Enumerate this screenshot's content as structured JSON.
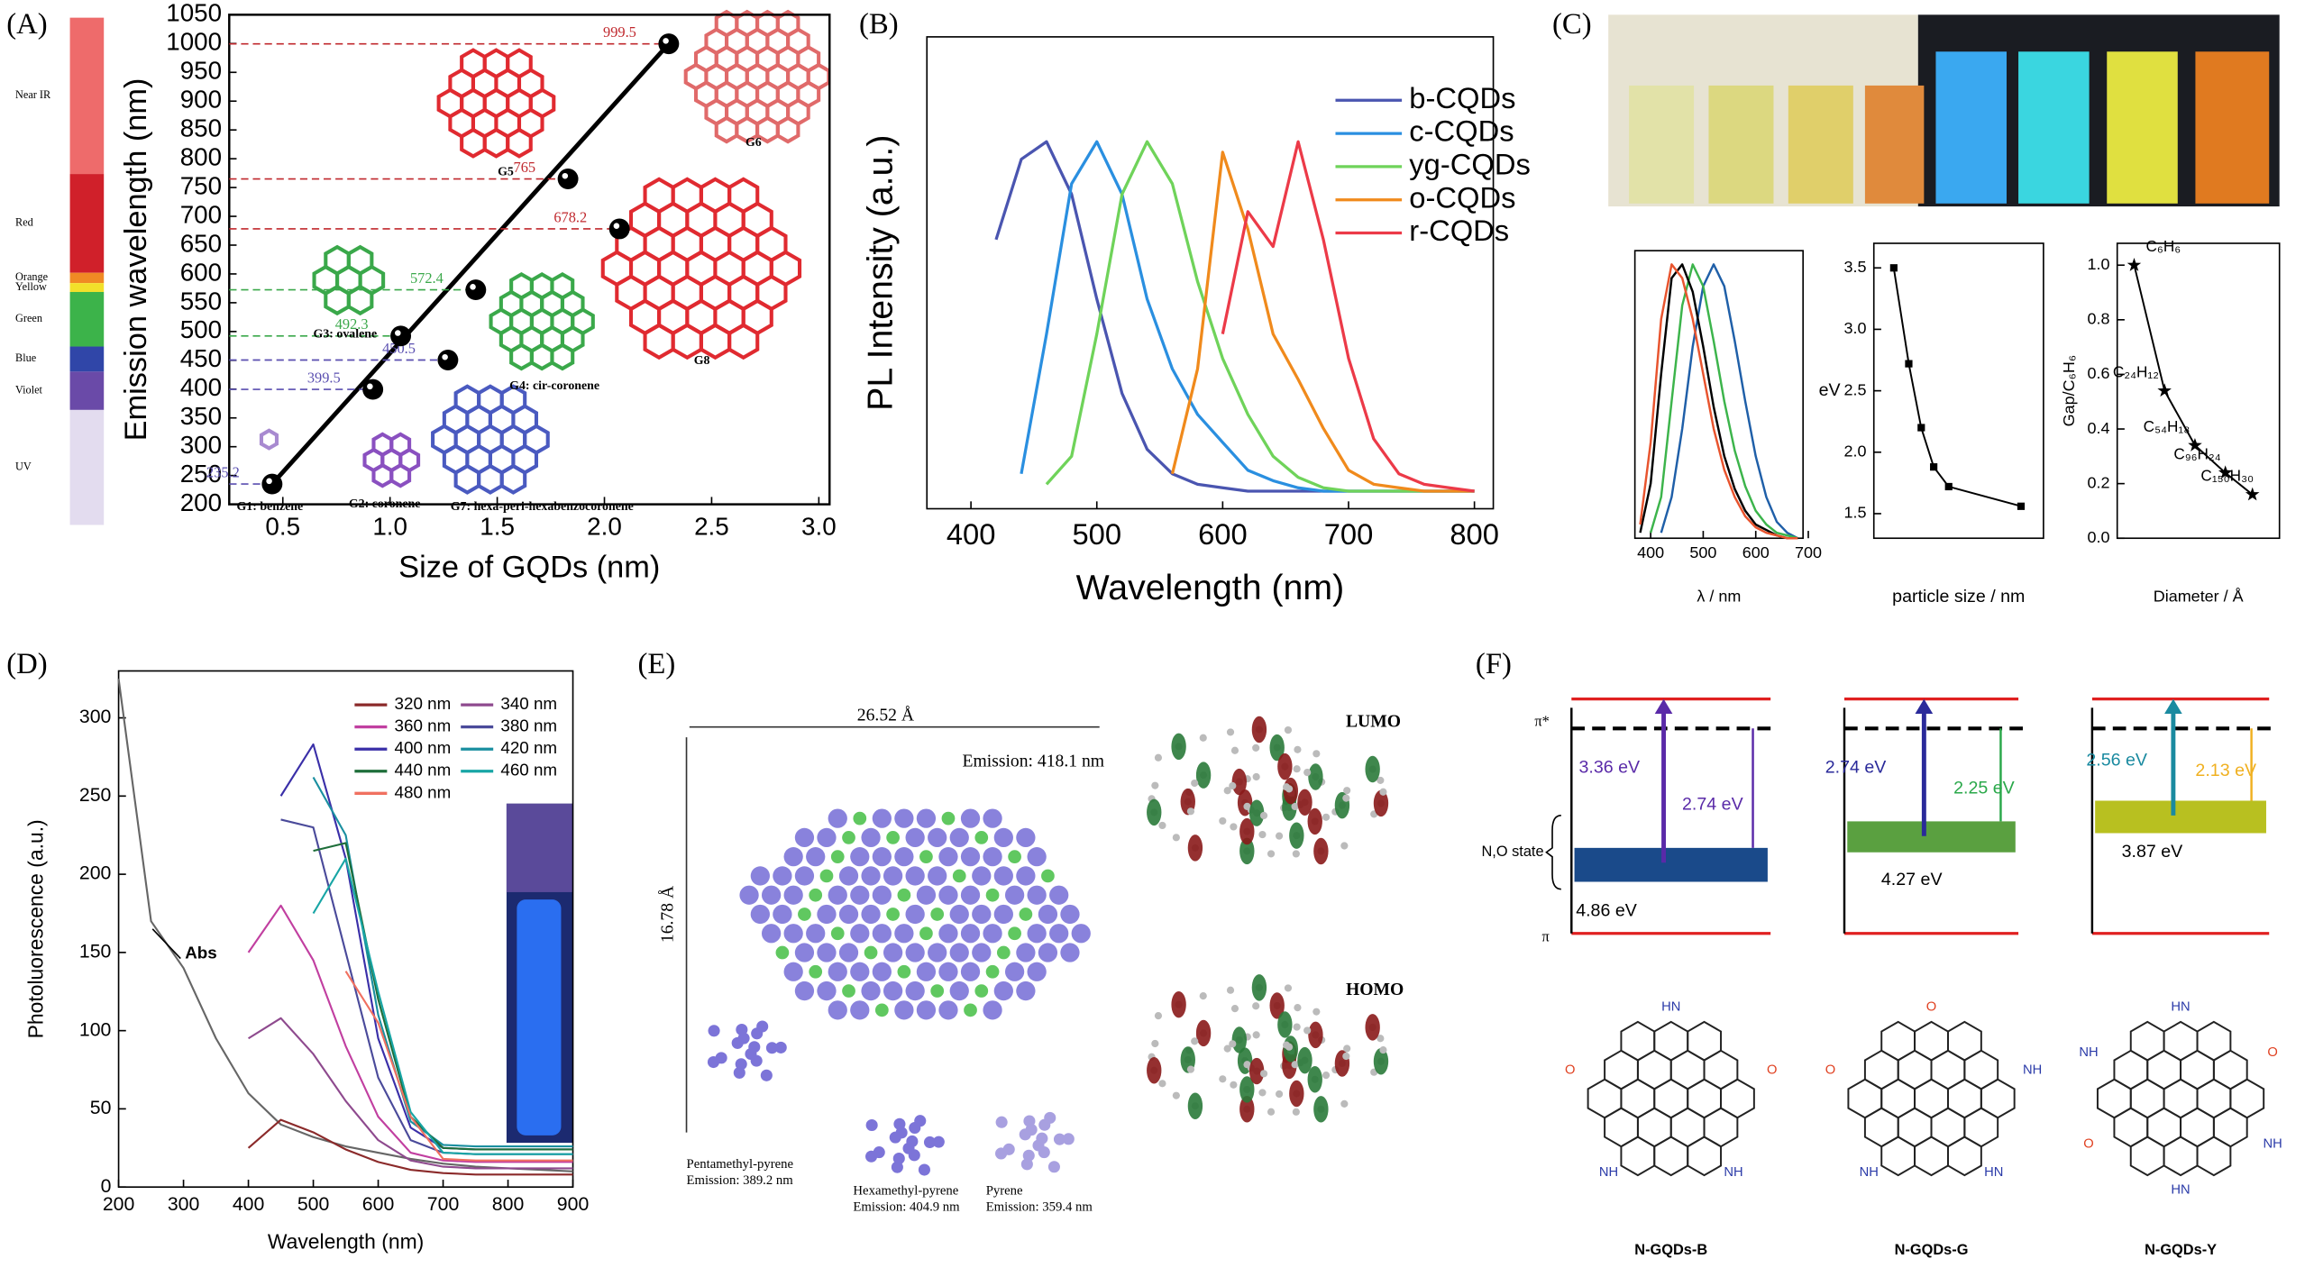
{
  "panel_labels": [
    "(A)",
    "(B)",
    "(C)",
    "(D)",
    "(E)",
    "(F)"
  ],
  "chart_data": [
    {
      "type": "scatter",
      "x": [
        0.45,
        0.92,
        1.05,
        1.27,
        1.4,
        1.83,
        2.07,
        2.3
      ],
      "series": [
        {
          "color": "#000000",
          "values": [
            235.2,
            399.5,
            492.3,
            450.5,
            572.4,
            765,
            678.2,
            999.5
          ]
        }
      ],
      "point_colors": [
        "#5a4fb0",
        "#5a4fb0",
        "#3aa84a",
        "#5a4fb0",
        "#3aa84a",
        "#c0282d",
        "#c0282d",
        "#c0282d"
      ],
      "trendline": true,
      "marker": "circle",
      "xlim": [
        0.25,
        3.05
      ],
      "ylim": [
        200,
        1050
      ],
      "xticks": [
        0.5,
        {
          "value": 1,
          "label": "1.0"
        },
        1.5,
        {
          "value": 2,
          "label": "2.0"
        },
        2.5,
        {
          "value": 3,
          "label": "3.0"
        }
      ],
      "yticks": [
        200,
        250,
        300,
        350,
        400,
        450,
        500,
        550,
        600,
        650,
        700,
        750,
        800,
        850,
        900,
        950,
        1000,
        1050
      ],
      "x_label": "Size of GQDs (nm)",
      "y_label": "Emission wavelength (nm)",
      "molecules": [
        "G1: benzene",
        "G2: coronene",
        "G3: ovalene",
        "G4: cir-coronene",
        "G5",
        "G6",
        "G7: hexa-peri-hexabenzocoronene",
        "G8"
      ],
      "spectrum": [
        {
          "label": "Near IR",
          "color": "#ee6b6b"
        },
        {
          "label": "Red",
          "color": "#d0202a"
        },
        {
          "label": "Orange",
          "color": "#f08a24"
        },
        {
          "label": "Yellow",
          "color": "#f2e02a"
        },
        {
          "label": "Green",
          "color": "#3cb34a"
        },
        {
          "label": "Blue",
          "color": "#3046a8"
        },
        {
          "label": "Violet",
          "color": "#6a4aa8"
        },
        {
          "label": "UV",
          "color": "#e3dcef"
        }
      ]
    },
    {
      "type": "line",
      "x": [
        400,
        420,
        440,
        460,
        480,
        500,
        520,
        540,
        560,
        580,
        600,
        620,
        640,
        660,
        680,
        700,
        720,
        740,
        760,
        780,
        800
      ],
      "series": [
        {
          "name": "b-CQDs",
          "color": "#4a55b0",
          "values": [
            null,
            0.72,
            0.95,
            1.0,
            0.85,
            0.55,
            0.28,
            0.12,
            0.05,
            0.02,
            0.01,
            0,
            0,
            0,
            0,
            0,
            0,
            0,
            0,
            0,
            0
          ]
        },
        {
          "name": "c-CQDs",
          "color": "#2a8fe0",
          "values": [
            null,
            null,
            0.05,
            0.45,
            0.88,
            1.0,
            0.85,
            0.55,
            0.35,
            0.22,
            0.14,
            0.06,
            0.03,
            0.01,
            0,
            0,
            0,
            0,
            0,
            0,
            0
          ]
        },
        {
          "name": "yg-CQDs",
          "color": "#6fd35a",
          "values": [
            null,
            null,
            null,
            0.02,
            0.1,
            0.45,
            0.85,
            1.0,
            0.88,
            0.6,
            0.38,
            0.22,
            0.1,
            0.04,
            0.01,
            0,
            0,
            0,
            0,
            0,
            0
          ]
        },
        {
          "name": "o-CQDs",
          "color": "#f08a1c",
          "values": [
            null,
            null,
            null,
            null,
            null,
            null,
            null,
            null,
            0.05,
            0.35,
            0.97,
            0.75,
            0.45,
            0.32,
            0.18,
            0.06,
            0.02,
            0.01,
            0,
            0,
            0
          ]
        },
        {
          "name": "r-CQDs",
          "color": "#ec3a48",
          "values": [
            null,
            null,
            null,
            null,
            null,
            null,
            null,
            null,
            null,
            null,
            0.45,
            0.8,
            0.7,
            1.0,
            0.72,
            0.38,
            0.15,
            0.05,
            0.02,
            0.01,
            0
          ]
        }
      ],
      "xlim": [
        365,
        815
      ],
      "ylim": [
        -0.05,
        1.3
      ],
      "xticks": [
        400,
        500,
        600,
        700,
        800
      ],
      "x_label": "Wavelength (nm)",
      "y_label": "PL Intensity (a.u.)",
      "legend": "upper right"
    },
    {
      "type": "line",
      "x": [
        380,
        400,
        420,
        440,
        460,
        480,
        500,
        520,
        540,
        560,
        580,
        600,
        620,
        640,
        660,
        680
      ],
      "series": [
        {
          "color": "#1f5fa8",
          "values": [
            null,
            null,
            0.02,
            0.15,
            0.4,
            0.7,
            0.92,
            1.0,
            0.92,
            0.72,
            0.5,
            0.3,
            0.15,
            0.06,
            0.02,
            0
          ]
        },
        {
          "color": "#3cb44b",
          "values": [
            null,
            0.02,
            0.15,
            0.5,
            0.85,
            1.0,
            0.92,
            0.72,
            0.5,
            0.32,
            0.19,
            0.1,
            0.05,
            0.02,
            0.01,
            0
          ]
        },
        {
          "color": "#000000",
          "values": [
            0.02,
            0.2,
            0.6,
            0.95,
            1.0,
            0.9,
            0.7,
            0.48,
            0.3,
            0.18,
            0.1,
            0.05,
            0.03,
            0.01,
            0,
            0
          ]
        },
        {
          "color": "#e8542e",
          "values": [
            0.05,
            0.35,
            0.8,
            1.0,
            0.95,
            0.8,
            0.6,
            0.4,
            0.25,
            0.15,
            0.08,
            0.04,
            0.02,
            0.01,
            0,
            0
          ]
        }
      ],
      "xlim": [
        370,
        690
      ],
      "ylim": [
        0,
        1.05
      ],
      "xticks": [
        400,
        500,
        600,
        700
      ],
      "x_label": "λ / nm"
    },
    {
      "type": "line",
      "x": [
        1.2,
        1.5,
        1.75,
        2.0,
        2.3,
        3.75
      ],
      "series": [
        {
          "color": "#000000",
          "values": [
            3.5,
            2.72,
            2.2,
            1.88,
            1.72,
            1.56
          ]
        }
      ],
      "markers": true,
      "marker": "square",
      "xlim": [
        0.8,
        4.2
      ],
      "ylim": [
        1.3,
        3.7
      ],
      "yticks": [
        1.5,
        {
          "value": 2,
          "label": "2.0"
        },
        2.5,
        {
          "value": 3,
          "label": "3.0"
        },
        3.5
      ],
      "x_label": "particle size / nm",
      "y_label": "eV"
    },
    {
      "type": "line",
      "x": [
        2.5,
        7,
        11.5,
        16,
        20
      ],
      "series": [
        {
          "color": "#000000",
          "values": [
            1.0,
            0.54,
            0.34,
            0.24,
            0.16
          ]
        }
      ],
      "markers": true,
      "marker": "star",
      "labels": [
        "C₆H₆",
        "C₂₄H₁₂",
        "C₅₄H₁₈",
        "C₉₆H₂₄",
        "C₁₅₀H₃₀"
      ],
      "xlim": [
        0,
        24
      ],
      "ylim": [
        0,
        1.08
      ],
      "yticks": [
        {
          "value": 0,
          "label": "0.0"
        },
        0.2,
        0.4,
        0.6,
        0.8,
        {
          "value": 1,
          "label": "1.0"
        }
      ],
      "x_label": "Diameter / Å",
      "y_label": "Gap/C₆H₆"
    },
    {
      "type": "line",
      "x": [
        200,
        250,
        300,
        350,
        400,
        450,
        500,
        550,
        600,
        650,
        700,
        750,
        800,
        850,
        900
      ],
      "series": [
        {
          "color": "#666666",
          "values": [
            325,
            170,
            140,
            95,
            60,
            40,
            32,
            26,
            22,
            18,
            15,
            13,
            12,
            11,
            10
          ]
        },
        {
          "name": "320 nm",
          "color": "#8b2a2a",
          "values": [
            null,
            null,
            null,
            null,
            25,
            43,
            35,
            24,
            16,
            11,
            9,
            8,
            8,
            8,
            8
          ]
        },
        {
          "name": "340 nm",
          "color": "#8e4a8e",
          "values": [
            null,
            null,
            null,
            null,
            95,
            108,
            85,
            55,
            30,
            17,
            13,
            12,
            12,
            12,
            12
          ]
        },
        {
          "name": "360 nm",
          "color": "#c13fa0",
          "values": [
            null,
            null,
            null,
            null,
            150,
            180,
            145,
            90,
            45,
            22,
            17,
            16,
            16,
            16,
            16
          ]
        },
        {
          "name": "380 nm",
          "color": "#4a4a9a",
          "values": [
            null,
            null,
            null,
            null,
            null,
            235,
            230,
            150,
            70,
            30,
            22,
            21,
            21,
            21,
            21
          ]
        },
        {
          "name": "400 nm",
          "color": "#3a2fa8",
          "values": [
            null,
            null,
            null,
            null,
            null,
            250,
            283,
            210,
            95,
            38,
            25,
            24,
            24,
            24,
            24
          ]
        },
        {
          "name": "420 nm",
          "color": "#1a8fa0",
          "values": [
            null,
            null,
            null,
            null,
            null,
            null,
            262,
            225,
            110,
            42,
            27,
            26,
            26,
            26,
            26
          ]
        },
        {
          "name": "440 nm",
          "color": "#1e6e3a",
          "values": [
            null,
            null,
            null,
            null,
            null,
            null,
            215,
            220,
            120,
            45,
            25,
            24,
            24,
            24,
            24
          ]
        },
        {
          "name": "460 nm",
          "color": "#17a5a5",
          "values": [
            null,
            null,
            null,
            null,
            null,
            null,
            175,
            210,
            125,
            48,
            22,
            21,
            21,
            21,
            21
          ]
        },
        {
          "name": "480 nm",
          "color": "#f07060",
          "values": [
            null,
            null,
            null,
            null,
            null,
            null,
            null,
            138,
            105,
            45,
            18,
            17,
            17,
            17,
            17
          ]
        }
      ],
      "annotations": [
        "Abs"
      ],
      "xlim": [
        200,
        900
      ],
      "ylim": [
        0,
        330
      ],
      "xticks": [
        200,
        300,
        400,
        500,
        600,
        700,
        800,
        900
      ],
      "yticks": [
        0,
        50,
        100,
        150,
        200,
        250,
        300
      ],
      "x_label": "Wavelength (nm)",
      "y_label": "Photoluorescence (a.u.)",
      "legend": "upper right"
    }
  ],
  "panel_e": {
    "width": "26.52 Å",
    "height": "16.78 Å",
    "emission": "Emission: 418.1 nm",
    "molecules": [
      {
        "name": "Pentamethyl-pyrene",
        "emission": "Emission: 389.2 nm"
      },
      {
        "name": "Hexamethyl-pyrene",
        "emission": "Emission: 404.9 nm"
      },
      {
        "name": "Pyrene",
        "emission": "Emission: 359.4 nm"
      }
    ],
    "orbitals": [
      "LUMO",
      "HOMO"
    ]
  },
  "panel_f": {
    "pi_star": "π*",
    "pi": "π",
    "state": "N,O state",
    "diagrams": [
      {
        "name": "N-GQDs-B",
        "labels": [
          "3.36 eV",
          "2.74 eV",
          "4.86 eV"
        ],
        "atoms": [
          "HN",
          "O",
          "NH",
          "NH",
          "O"
        ]
      },
      {
        "name": "N-GQDs-G",
        "labels": [
          "2.74 eV",
          "2.25 eV",
          "4.27 eV"
        ],
        "atoms": [
          "O",
          "NH",
          "HN",
          "NH",
          "O"
        ]
      },
      {
        "name": "N-GQDs-Y",
        "labels": [
          "2.56 eV",
          "2.13 eV",
          "3.87 eV"
        ],
        "atoms": [
          "HN",
          "O",
          "NH",
          "HN",
          "O",
          "NH"
        ]
      }
    ]
  }
}
